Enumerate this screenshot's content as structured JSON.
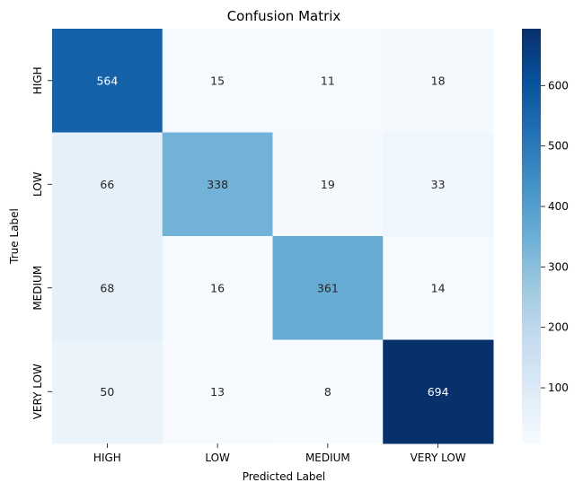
{
  "chart_data": {
    "type": "heatmap",
    "title": "Confusion Matrix",
    "xlabel": "Predicted Label",
    "ylabel": "True Label",
    "x_categories": [
      "HIGH",
      "LOW",
      "MEDIUM",
      "VERY LOW"
    ],
    "y_categories": [
      "HIGH",
      "LOW",
      "MEDIUM",
      "VERY LOW"
    ],
    "values": [
      [
        564,
        15,
        11,
        18
      ],
      [
        66,
        338,
        19,
        33
      ],
      [
        68,
        16,
        361,
        14
      ],
      [
        50,
        13,
        8,
        694
      ]
    ],
    "colormap": "Blues",
    "colorbar": {
      "range": [
        8,
        694
      ],
      "ticks": [
        100,
        200,
        300,
        400,
        500,
        600
      ]
    }
  }
}
